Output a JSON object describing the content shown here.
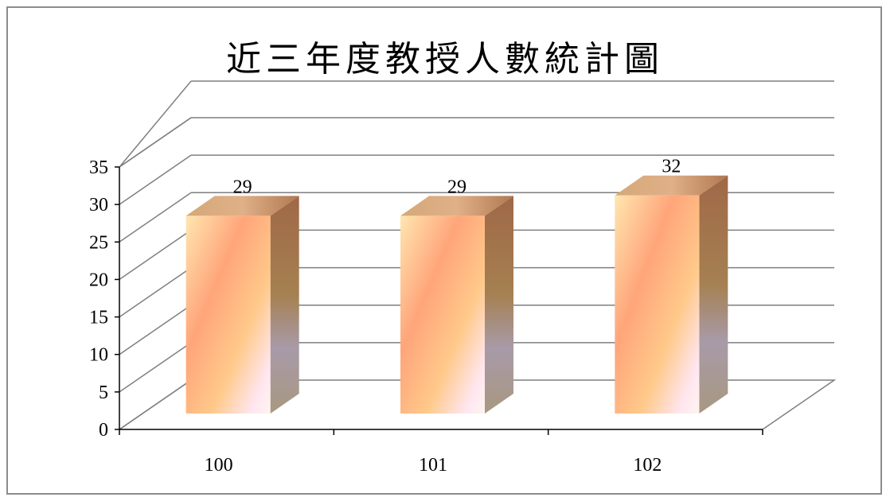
{
  "colors": {
    "frame": "#8c8c8c",
    "grid": "#7f7f7f",
    "bar_light": "#ffd9a0",
    "bar_mid": "#ffb07e",
    "bar_side": "#b08a70"
  },
  "chart_data": {
    "type": "bar",
    "title": "近三年度教授人數統計圖",
    "categories": [
      "100",
      "101",
      "102"
    ],
    "values": [
      29,
      29,
      32
    ],
    "data_labels": [
      "29",
      "29",
      "32"
    ],
    "ylim": [
      0,
      35
    ],
    "y_ticks": [
      0,
      5,
      10,
      15,
      20,
      25,
      30,
      35
    ],
    "grid": true,
    "legend": "none",
    "style": "3d-column"
  }
}
